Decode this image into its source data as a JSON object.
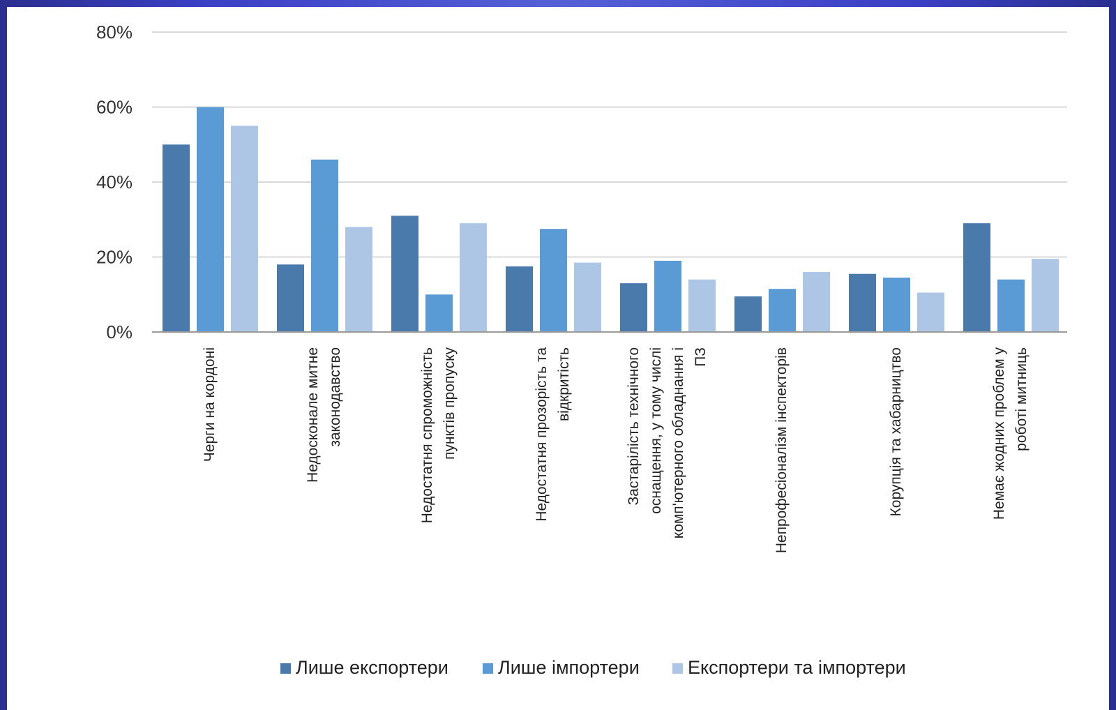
{
  "chart_data": {
    "type": "bar",
    "title": "",
    "xlabel": "",
    "ylabel": "",
    "ylim": [
      0,
      80
    ],
    "yticks": [
      "0%",
      "20%",
      "40%",
      "60%",
      "80%"
    ],
    "grid": true,
    "legend_position": "bottom",
    "categories": [
      [
        "Черги на кордоні"
      ],
      [
        "Недосконале митне",
        "законодавство"
      ],
      [
        "Недостатня спроможність",
        "пунктів пропуску"
      ],
      [
        "Недостатня прозорість та",
        "відкритість"
      ],
      [
        "Застарілість технічного",
        "оснащення, у тому числі",
        "комп'ютерного обладнання і",
        "ПЗ"
      ],
      [
        "Непрофесіоналізм інспекторів"
      ],
      [
        "Корупція та хабарництво"
      ],
      [
        "Немає жодних проблем у",
        "роботі митниць"
      ]
    ],
    "series": [
      {
        "name": "Лише експортери",
        "color": "#4a7aab",
        "values": [
          50,
          18,
          31,
          17.5,
          13,
          9.5,
          15.5,
          29
        ]
      },
      {
        "name": "Лише імпортери",
        "color": "#5b9bd5",
        "values": [
          60,
          46,
          10,
          27.5,
          19,
          11.5,
          14.5,
          14
        ]
      },
      {
        "name": "Експортери та імпортери",
        "color": "#aec6e6",
        "values": [
          55,
          28,
          29,
          18.5,
          14,
          16,
          10.5,
          19.5
        ]
      }
    ]
  }
}
